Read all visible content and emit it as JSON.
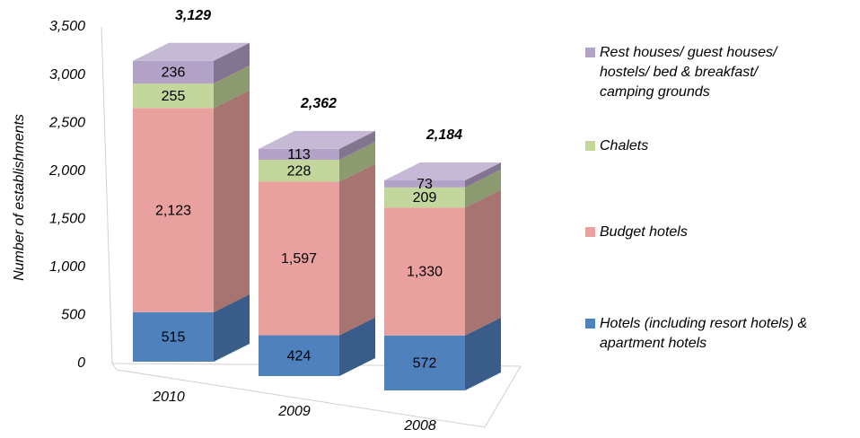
{
  "chart_data": {
    "type": "bar",
    "stacked": true,
    "y_label": "Number of establishments",
    "categories": [
      "2010",
      "2009",
      "2008"
    ],
    "series": [
      {
        "name": "Hotels (including resort hotels) & apartment hotels",
        "color": "#4f81bd",
        "values": [
          515,
          424,
          572
        ]
      },
      {
        "name": "Budget hotels",
        "color": "#e8a19e",
        "values": [
          2123,
          1597,
          1330
        ],
        "value_labels": [
          "2,123",
          "1,597",
          "1,330"
        ]
      },
      {
        "name": "Chalets",
        "color": "#c3d69b",
        "values": [
          255,
          228,
          209
        ]
      },
      {
        "name": "Rest houses/ guest houses/ hostels/ bed & breakfast/ camping grounds",
        "color": "#b3a2c7",
        "values": [
          236,
          113,
          73
        ]
      }
    ],
    "totals": [
      3129,
      2362,
      2184
    ],
    "total_labels": [
      "3,129",
      "2,362",
      "2,184"
    ],
    "ylim": [
      0,
      3500
    ],
    "yticks": [
      0,
      500,
      {
        "value": 1000,
        "label": "1,000"
      },
      {
        "value": 1500,
        "label": "1,500"
      },
      {
        "value": 2000,
        "label": "2,000"
      },
      {
        "value": 2500,
        "label": "2,500"
      },
      {
        "value": 3000,
        "label": "3,000"
      },
      {
        "value": 3500,
        "label": "3,500"
      }
    ],
    "legend": "right"
  }
}
